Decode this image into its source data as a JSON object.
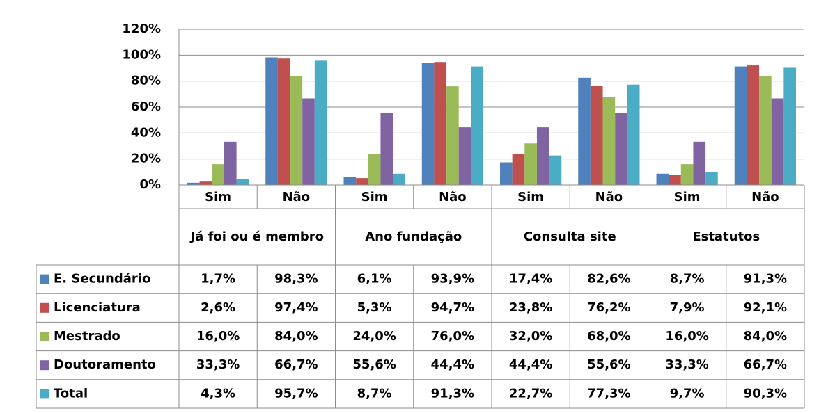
{
  "chart_data": {
    "type": "bar",
    "groups": [
      "Já foi ou é membro",
      "Ano fundação",
      "Consulta site",
      "Estatutos"
    ],
    "categories": [
      "Sim",
      "Não",
      "Sim",
      "Não",
      "Sim",
      "Não",
      "Sim",
      "Não"
    ],
    "ylim": [
      0,
      120
    ],
    "yticks": [
      {
        "value": 0,
        "label": "0%"
      },
      {
        "value": 20,
        "label": "20%"
      },
      {
        "value": 40,
        "label": "40%"
      },
      {
        "value": 60,
        "label": "60%"
      },
      {
        "value": 80,
        "label": "80%"
      },
      {
        "value": 100,
        "label": "100%"
      },
      {
        "value": 120,
        "label": "120%"
      }
    ],
    "grid": true,
    "series": [
      {
        "name": "E. Secundário",
        "color": "#4f81bd",
        "values": [
          1.7,
          98.3,
          6.1,
          93.9,
          17.4,
          82.6,
          8.7,
          91.3
        ],
        "value_labels": [
          "1,7%",
          "98,3%",
          "6,1%",
          "93,9%",
          "17,4%",
          "82,6%",
          "8,7%",
          "91,3%"
        ]
      },
      {
        "name": "Licenciatura",
        "color": "#c0504d",
        "values": [
          2.6,
          97.4,
          5.3,
          94.7,
          23.8,
          76.2,
          7.9,
          92.1
        ],
        "value_labels": [
          "2,6%",
          "97,4%",
          "5,3%",
          "94,7%",
          "23,8%",
          "76,2%",
          "7,9%",
          "92,1%"
        ]
      },
      {
        "name": "Mestrado",
        "color": "#9bbb59",
        "values": [
          16.0,
          84.0,
          24.0,
          76.0,
          32.0,
          68.0,
          16.0,
          84.0
        ],
        "value_labels": [
          "16,0%",
          "84,0%",
          "24,0%",
          "76,0%",
          "32,0%",
          "68,0%",
          "16,0%",
          "84,0%"
        ]
      },
      {
        "name": "Doutoramento",
        "color": "#8064a2",
        "values": [
          33.3,
          66.7,
          55.6,
          44.4,
          44.4,
          55.6,
          33.3,
          66.7
        ],
        "value_labels": [
          "33,3%",
          "66,7%",
          "55,6%",
          "44,4%",
          "44,4%",
          "55,6%",
          "33,3%",
          "66,7%"
        ]
      },
      {
        "name": "Total",
        "color": "#4bacc6",
        "values": [
          4.3,
          95.7,
          8.7,
          91.3,
          22.7,
          77.3,
          9.7,
          90.3
        ],
        "value_labels": [
          "4,3%",
          "95,7%",
          "8,7%",
          "91,3%",
          "22,7%",
          "77,3%",
          "9,7%",
          "90,3%"
        ]
      }
    ]
  }
}
